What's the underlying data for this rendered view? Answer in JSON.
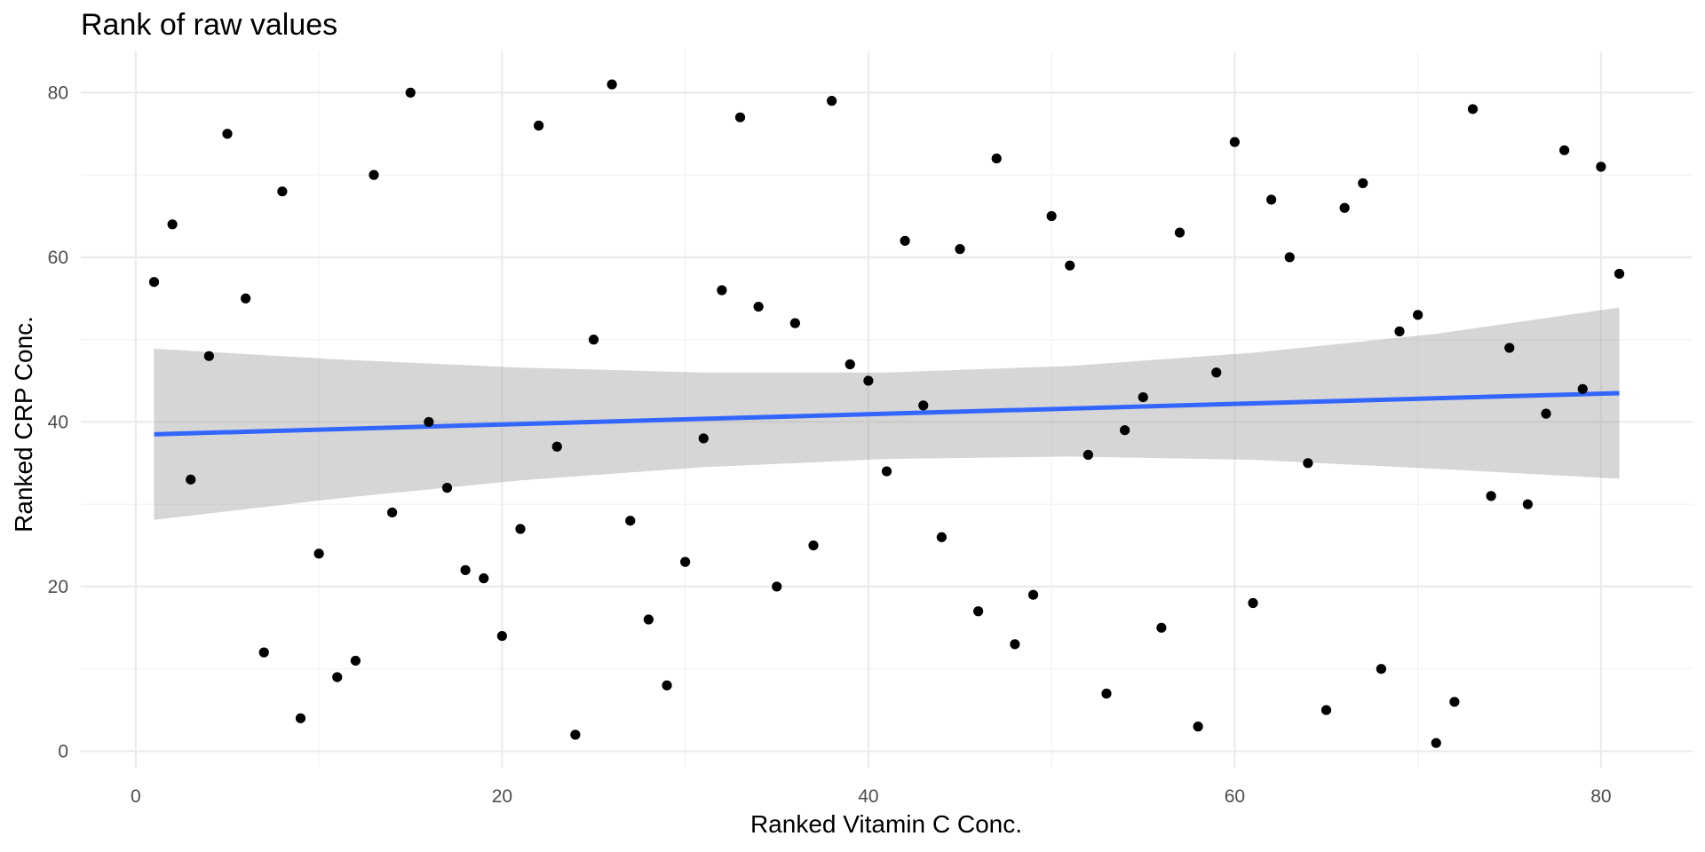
{
  "chart_data": {
    "type": "scatter",
    "title": "Rank of raw values",
    "xlabel": "Ranked Vitamin C Conc.",
    "ylabel": "Ranked CRP Conc.",
    "xlim": [
      -3,
      85
    ],
    "ylim": [
      -2,
      85
    ],
    "x_ticks": [
      0,
      20,
      40,
      60,
      80
    ],
    "y_ticks": [
      0,
      20,
      40,
      60,
      80
    ],
    "x_tick_labels": [
      "0",
      "20",
      "40",
      "60",
      "80"
    ],
    "y_tick_labels": [
      "0",
      "20",
      "40",
      "60",
      "80"
    ],
    "grid": true,
    "points": [
      [
        1,
        57
      ],
      [
        2,
        64
      ],
      [
        3,
        33
      ],
      [
        4,
        48
      ],
      [
        5,
        75
      ],
      [
        6,
        55
      ],
      [
        7,
        12
      ],
      [
        8,
        68
      ],
      [
        9,
        4
      ],
      [
        10,
        24
      ],
      [
        11,
        9
      ],
      [
        12,
        11
      ],
      [
        13,
        70
      ],
      [
        14,
        29
      ],
      [
        15,
        80
      ],
      [
        16,
        40
      ],
      [
        17,
        32
      ],
      [
        18,
        22
      ],
      [
        19,
        21
      ],
      [
        20,
        14
      ],
      [
        21,
        27
      ],
      [
        22,
        76
      ],
      [
        23,
        37
      ],
      [
        24,
        2
      ],
      [
        25,
        50
      ],
      [
        26,
        81
      ],
      [
        27,
        28
      ],
      [
        28,
        16
      ],
      [
        29,
        8
      ],
      [
        30,
        23
      ],
      [
        31,
        38
      ],
      [
        32,
        56
      ],
      [
        33,
        77
      ],
      [
        34,
        54
      ],
      [
        35,
        20
      ],
      [
        36,
        52
      ],
      [
        37,
        25
      ],
      [
        38,
        79
      ],
      [
        39,
        47
      ],
      [
        40,
        45
      ],
      [
        41,
        34
      ],
      [
        42,
        62
      ],
      [
        43,
        42
      ],
      [
        44,
        26
      ],
      [
        45,
        61
      ],
      [
        46,
        17
      ],
      [
        47,
        72
      ],
      [
        48,
        13
      ],
      [
        49,
        19
      ],
      [
        50,
        65
      ],
      [
        51,
        59
      ],
      [
        52,
        36
      ],
      [
        53,
        7
      ],
      [
        54,
        39
      ],
      [
        55,
        43
      ],
      [
        56,
        15
      ],
      [
        57,
        63
      ],
      [
        58,
        3
      ],
      [
        59,
        46
      ],
      [
        60,
        74
      ],
      [
        61,
        18
      ],
      [
        62,
        67
      ],
      [
        63,
        60
      ],
      [
        64,
        35
      ],
      [
        65,
        5
      ],
      [
        66,
        66
      ],
      [
        67,
        69
      ],
      [
        68,
        10
      ],
      [
        69,
        51
      ],
      [
        70,
        53
      ],
      [
        71,
        1
      ],
      [
        72,
        6
      ],
      [
        73,
        78
      ],
      [
        74,
        31
      ],
      [
        75,
        49
      ],
      [
        76,
        30
      ],
      [
        77,
        41
      ],
      [
        78,
        73
      ],
      [
        79,
        44
      ],
      [
        80,
        71
      ],
      [
        81,
        58
      ]
    ],
    "fit_line": {
      "x": [
        1,
        81
      ],
      "y": [
        38.5,
        43.5
      ],
      "color": "#3366ff"
    },
    "confidence_band": {
      "x": [
        1,
        11,
        21,
        31,
        41,
        51,
        61,
        71,
        81
      ],
      "upper": [
        48.9,
        47.6,
        46.6,
        46.0,
        46.0,
        46.8,
        48.4,
        50.7,
        53.9
      ],
      "lower": [
        28.1,
        30.7,
        32.9,
        34.5,
        35.5,
        35.8,
        35.4,
        34.3,
        33.1
      ],
      "color": "#999999"
    }
  }
}
